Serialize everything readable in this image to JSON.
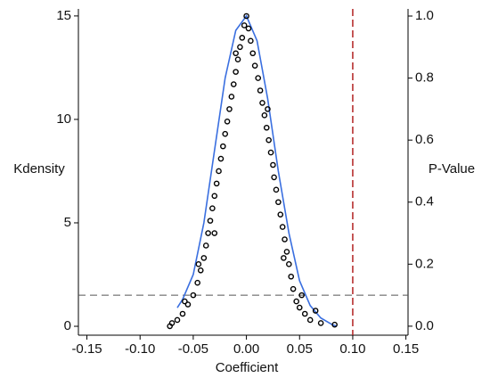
{
  "chart_data": {
    "type": "line",
    "x_label": "Coefficient",
    "y_label": "Kdensity",
    "y2_label": "P-Value",
    "xlim": [
      -0.158,
      0.152
    ],
    "ylim": [
      -0.43,
      15.34
    ],
    "y2lim": [
      -0.029,
      1.023
    ],
    "xticks": [
      {
        "value": -0.15,
        "label": "-0.15"
      },
      {
        "value": -0.1,
        "label": "-0.10"
      },
      {
        "value": -0.05,
        "label": "-0.05"
      },
      {
        "value": 0,
        "label": "0.00"
      },
      {
        "value": 0.05,
        "label": "0.05"
      },
      {
        "value": 0.1,
        "label": "0.10"
      },
      {
        "value": 0.15,
        "label": "0.15"
      }
    ],
    "yticks": [
      0,
      5,
      10,
      15
    ],
    "y2ticks": [
      {
        "value": 0,
        "label": "0.0"
      },
      {
        "value": 0.2,
        "label": "0.2"
      },
      {
        "value": 0.4,
        "label": "0.4"
      },
      {
        "value": 0.6,
        "label": "0.6"
      },
      {
        "value": 0.8,
        "label": "0.8"
      },
      {
        "value": 1,
        "label": "1.0"
      }
    ],
    "series": [
      {
        "type": "line",
        "color": "#3a6fe0",
        "x": [
          -0.065,
          -0.06,
          -0.05,
          -0.04,
          -0.03,
          -0.02,
          -0.01,
          0,
          0.01,
          0.02,
          0.03,
          0.04,
          0.05,
          0.06,
          0.07,
          0.08,
          0.085
        ],
        "values": [
          0.9,
          1.3,
          2.5,
          5,
          8.5,
          12,
          14.3,
          15,
          13.8,
          11,
          7.5,
          4.5,
          2.2,
          1,
          0.4,
          0.1,
          0
        ]
      },
      {
        "type": "scatter",
        "axis": "y2",
        "color": "#000000",
        "x": [
          0.0,
          -0.002,
          0.002,
          -0.004,
          0.004,
          -0.006,
          0.006,
          -0.008,
          0.008,
          -0.01,
          0.011,
          -0.012,
          0.013,
          -0.014,
          0.015,
          -0.016,
          0.017,
          -0.018,
          0.019,
          -0.02,
          0.021,
          -0.022,
          0.023,
          -0.024,
          0.025,
          -0.026,
          0.026,
          -0.028,
          0.028,
          -0.03,
          0.03,
          -0.032,
          0.032,
          -0.034,
          0.034,
          -0.036,
          0.036,
          -0.038,
          0.038,
          -0.04,
          0.04,
          -0.043,
          0.042,
          -0.046,
          0.044,
          -0.05,
          0.047,
          -0.055,
          0.05,
          -0.06,
          0.055,
          -0.065,
          0.06,
          -0.07,
          0.07,
          -0.072,
          0.083,
          -0.045,
          0.02,
          -0.01,
          0.035,
          -0.03,
          0.052,
          -0.058,
          0.065
        ],
        "values": [
          1.0,
          0.97,
          0.96,
          0.93,
          0.92,
          0.9,
          0.88,
          0.86,
          0.84,
          0.82,
          0.8,
          0.78,
          0.76,
          0.74,
          0.72,
          0.7,
          0.68,
          0.66,
          0.64,
          0.62,
          0.6,
          0.58,
          0.56,
          0.54,
          0.52,
          0.5,
          0.48,
          0.46,
          0.44,
          0.42,
          0.4,
          0.38,
          0.36,
          0.34,
          0.32,
          0.3,
          0.28,
          0.26,
          0.24,
          0.22,
          0.2,
          0.18,
          0.16,
          0.14,
          0.12,
          0.1,
          0.08,
          0.07,
          0.06,
          0.04,
          0.04,
          0.02,
          0.02,
          0.01,
          0.01,
          0.0,
          0.005,
          0.2,
          0.7,
          0.88,
          0.22,
          0.3,
          0.1,
          0.08,
          0.05
        ]
      }
    ],
    "hlines": [
      {
        "value": 0.1,
        "axis": "y2",
        "color": "#555555"
      }
    ],
    "vlines": [
      {
        "value": 0.1,
        "color": "#b22222"
      }
    ]
  }
}
